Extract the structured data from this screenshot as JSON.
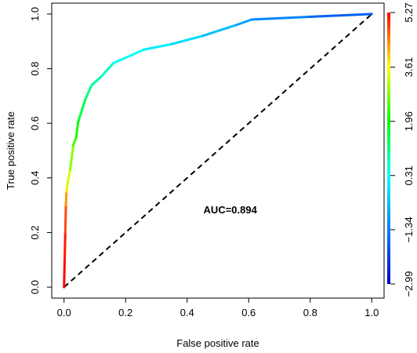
{
  "chart_data": {
    "type": "line",
    "title": "",
    "xlabel": "False positive rate",
    "ylabel": "True positive rate",
    "xlim": [
      -0.04,
      1.04
    ],
    "ylim": [
      -0.04,
      1.04
    ],
    "x_ticks": [
      "0.0",
      "0.2",
      "0.4",
      "0.6",
      "0.8",
      "1.0"
    ],
    "y_ticks": [
      "0.0",
      "0.2",
      "0.4",
      "0.6",
      "0.8",
      "1.0"
    ],
    "annotation": "AUC=0.894",
    "grid": false,
    "series": [
      {
        "x": [
          0.0,
          0.002,
          0.004,
          0.006,
          0.008,
          0.01,
          0.02,
          0.03,
          0.04,
          0.045,
          0.05,
          0.07,
          0.09,
          0.12,
          0.16,
          0.26,
          0.35,
          0.45,
          0.56,
          0.61,
          0.8,
          1.0
        ],
        "y": [
          0.0,
          0.1,
          0.2,
          0.3,
          0.35,
          0.37,
          0.43,
          0.52,
          0.55,
          0.6,
          0.62,
          0.69,
          0.74,
          0.77,
          0.82,
          0.87,
          0.89,
          0.92,
          0.96,
          0.98,
          0.99,
          1.0
        ],
        "cutoff": [
          5.27,
          5.2,
          5.0,
          4.6,
          4.0,
          3.6,
          3.1,
          2.6,
          2.2,
          2.0,
          1.7,
          1.3,
          1.0,
          0.8,
          0.6,
          0.2,
          0.0,
          -0.3,
          -0.8,
          -1.0,
          -1.5,
          -2.0
        ]
      }
    ],
    "reference_line": {
      "style": "dashed",
      "from": [
        0,
        0
      ],
      "to": [
        1,
        1
      ]
    },
    "colorbar": {
      "min": -2.99,
      "max": 5.27,
      "tick_labels": [
        "-2.99",
        "-1.34",
        "0.31",
        "1.96",
        "3.61",
        "5.27"
      ],
      "colors": [
        "#0000cc",
        "#0080ff",
        "#00ffff",
        "#00ff00",
        "#ffff00",
        "#ff0000"
      ]
    }
  }
}
